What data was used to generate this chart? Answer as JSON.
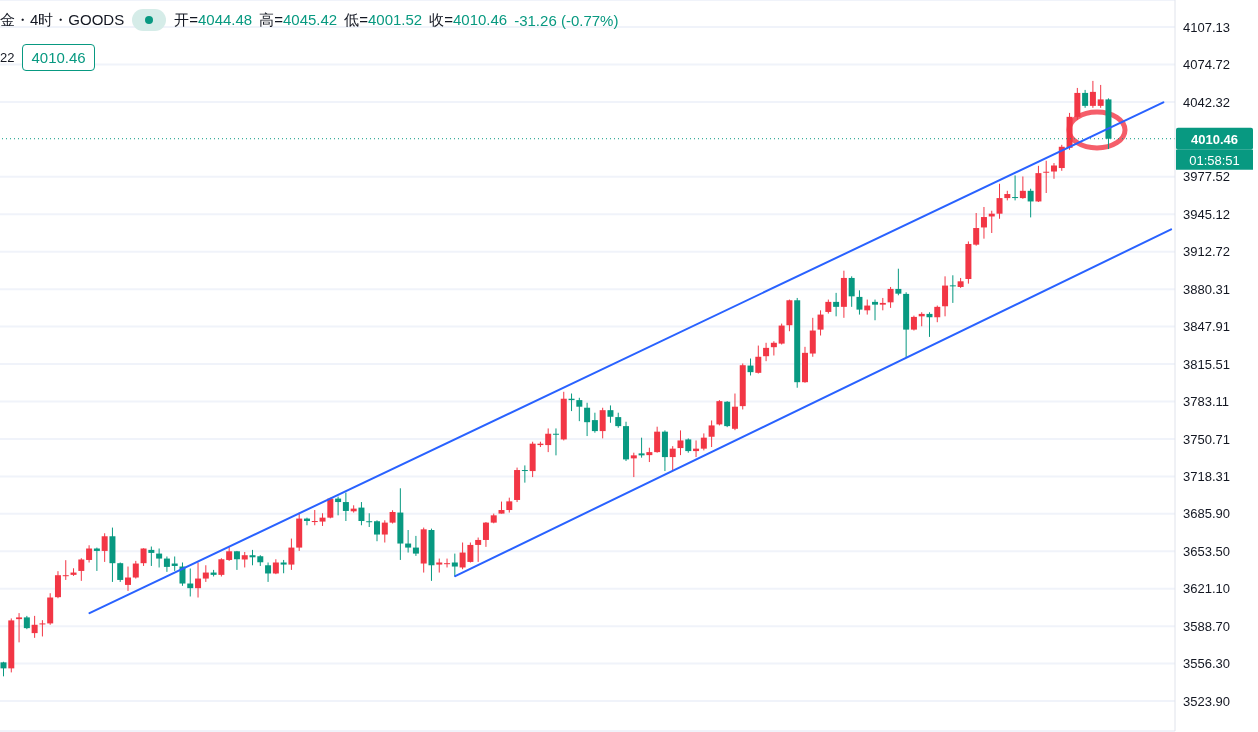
{
  "chart_data": {
    "type": "candlestick",
    "title": "金・4时・GOODS",
    "annotations": [
      "开=4044.48",
      "高=4045.42",
      "低=4001.52",
      "收=4010.46",
      "-31.26 (-0.77%)",
      "22",
      "4010.46",
      "01:58:51"
    ],
    "categories": [
      null,
      null,
      null,
      null,
      null,
      null,
      null,
      null,
      null,
      null,
      null,
      null,
      null,
      null,
      null,
      null,
      null,
      null,
      null,
      null,
      null,
      null,
      null,
      null,
      null,
      null,
      null,
      null,
      null,
      null,
      null,
      null,
      null,
      null,
      null,
      null,
      null,
      null,
      null,
      null,
      null,
      null,
      null,
      null,
      null,
      null,
      null,
      null,
      null,
      null,
      null,
      null,
      null,
      null,
      null,
      null,
      null,
      null,
      null,
      null,
      null,
      null,
      null,
      null,
      null,
      null,
      null,
      null,
      null,
      null,
      null,
      null,
      null,
      null,
      null,
      null,
      null,
      null,
      null,
      null,
      null,
      null,
      null,
      null,
      null,
      null,
      null,
      null,
      null,
      null,
      null,
      null,
      null,
      null,
      null,
      null,
      null,
      null,
      null,
      null,
      null,
      null,
      null,
      null,
      null,
      null,
      null,
      null,
      null,
      null,
      null,
      null,
      null,
      null,
      null,
      null,
      null,
      null,
      null,
      null,
      null,
      null,
      null,
      null,
      null,
      null,
      null,
      null,
      null,
      null,
      null,
      null,
      null,
      null,
      null,
      null,
      null,
      null,
      null,
      null,
      null,
      null,
      null,
      null,
      null,
      null,
      null,
      null,
      null,
      null,
      null
    ],
    "ohlc": [
      [
        3557.4,
        3557.9,
        3545.3,
        3552.2
      ],
      [
        3552.2,
        3595.4,
        3548.7,
        3593.7
      ],
      [
        3594.8,
        3600.0,
        3574.7,
        3596.3
      ],
      [
        3596.3,
        3597.6,
        3586.1,
        3587.0
      ],
      [
        3582.7,
        3597.6,
        3578.6,
        3589.9
      ],
      [
        3590.2,
        3593.9,
        3579.8,
        3591.1
      ],
      [
        3591.1,
        3617.2,
        3589.9,
        3613.5
      ],
      [
        3613.8,
        3636.3,
        3612.9,
        3632.8
      ],
      [
        3632.2,
        3645.8,
        3628.7,
        3632.8
      ],
      [
        3633.1,
        3638.8,
        3632.2,
        3635.1
      ],
      [
        3636.5,
        3647.5,
        3627.9,
        3646.4
      ],
      [
        3646.0,
        3658.7,
        3643.8,
        3655.9
      ],
      [
        3655.9,
        3656.7,
        3636.5,
        3653.8
      ],
      [
        3653.8,
        3669.1,
        3644.3,
        3666.5
      ],
      [
        3666.5,
        3674.0,
        3627.0,
        3643.2
      ],
      [
        3643.2,
        3643.8,
        3627.0,
        3628.7
      ],
      [
        3624.4,
        3640.3,
        3619.2,
        3630.8
      ],
      [
        3630.8,
        3645.2,
        3629.9,
        3642.9
      ],
      [
        3643.2,
        3656.1,
        3640.8,
        3655.9
      ],
      [
        3654.7,
        3657.6,
        3640.8,
        3652.1
      ],
      [
        3651.5,
        3655.9,
        3639.5,
        3647.2
      ],
      [
        3647.2,
        3649.0,
        3635.7,
        3640.0
      ],
      [
        3642.9,
        3649.0,
        3636.5,
        3640.8
      ],
      [
        3640.3,
        3643.8,
        3623.6,
        3625.6
      ],
      [
        3625.6,
        3638.6,
        3614.4,
        3621.6
      ],
      [
        3621.6,
        3643.8,
        3613.5,
        3629.9
      ],
      [
        3629.9,
        3641.4,
        3627.0,
        3635.1
      ],
      [
        3635.1,
        3637.4,
        3631.7,
        3633.1
      ],
      [
        3633.1,
        3647.5,
        3631.7,
        3646.6
      ],
      [
        3646.0,
        3658.1,
        3645.2,
        3653.5
      ],
      [
        3653.5,
        3653.8,
        3637.4,
        3646.6
      ],
      [
        3646.4,
        3652.9,
        3639.5,
        3650.1
      ],
      [
        3650.1,
        3654.7,
        3641.4,
        3648.3
      ],
      [
        3649.2,
        3650.1,
        3640.8,
        3644.0
      ],
      [
        3641.4,
        3643.8,
        3627.0,
        3634.3
      ],
      [
        3634.3,
        3646.6,
        3633.7,
        3643.8
      ],
      [
        3643.8,
        3646.0,
        3634.5,
        3642.0
      ],
      [
        3642.0,
        3664.5,
        3637.4,
        3656.7
      ],
      [
        3656.7,
        3687.0,
        3653.8,
        3681.8
      ],
      [
        3681.8,
        3682.6,
        3676.0,
        3679.7
      ],
      [
        3678.8,
        3689.2,
        3676.0,
        3679.7
      ],
      [
        3679.2,
        3686.4,
        3675.4,
        3682.6
      ],
      [
        3682.6,
        3699.9,
        3682.0,
        3699.1
      ],
      [
        3699.1,
        3700.8,
        3684.6,
        3696.1
      ],
      [
        3696.1,
        3704.3,
        3679.7,
        3688.4
      ],
      [
        3688.1,
        3693.3,
        3687.0,
        3690.4
      ],
      [
        3691.3,
        3696.1,
        3676.0,
        3679.7
      ],
      [
        3679.5,
        3686.4,
        3674.5,
        3678.8
      ],
      [
        3679.5,
        3680.3,
        3662.2,
        3668.0
      ],
      [
        3668.0,
        3680.3,
        3661.1,
        3678.3
      ],
      [
        3678.3,
        3689.0,
        3677.5,
        3687.5
      ],
      [
        3687.0,
        3708.0,
        3646.0,
        3660.2
      ],
      [
        3660.2,
        3671.9,
        3652.4,
        3656.7
      ],
      [
        3656.7,
        3666.8,
        3649.5,
        3651.5
      ],
      [
        3642.9,
        3674.0,
        3635.1,
        3672.5
      ],
      [
        3671.9,
        3673.1,
        3627.9,
        3641.4
      ],
      [
        3642.0,
        3647.2,
        3635.1,
        3643.8
      ],
      [
        3642.6,
        3647.2,
        3639.5,
        3643.2
      ],
      [
        3643.8,
        3651.5,
        3631.7,
        3640.3
      ],
      [
        3639.5,
        3661.1,
        3638.0,
        3652.4
      ],
      [
        3644.3,
        3661.1,
        3643.8,
        3659.0
      ],
      [
        3659.0,
        3665.4,
        3644.3,
        3663.3
      ],
      [
        3663.3,
        3678.8,
        3657.3,
        3678.3
      ],
      [
        3678.3,
        3686.1,
        3677.7,
        3684.6
      ],
      [
        3686.1,
        3696.5,
        3686.1,
        3689.2
      ],
      [
        3689.2,
        3699.9,
        3687.0,
        3696.7
      ],
      [
        3697.9,
        3725.9,
        3696.1,
        3723.8
      ],
      [
        3723.8,
        3727.8,
        3712.9,
        3723.3
      ],
      [
        3722.9,
        3748.3,
        3717.7,
        3746.6
      ],
      [
        3745.4,
        3748.3,
        3743.7,
        3746.6
      ],
      [
        3745.4,
        3759.8,
        3739.3,
        3755.2
      ],
      [
        3755.2,
        3759.8,
        3736.5,
        3754.6
      ],
      [
        3750.3,
        3791.5,
        3749.4,
        3785.5
      ],
      [
        3785.5,
        3790.0,
        3774.8,
        3784.3
      ],
      [
        3784.3,
        3786.3,
        3766.1,
        3778.6
      ],
      [
        3777.7,
        3782.0,
        3753.2,
        3765.2
      ],
      [
        3767.0,
        3773.4,
        3756.1,
        3757.5
      ],
      [
        3757.5,
        3777.7,
        3751.2,
        3775.6
      ],
      [
        3775.6,
        3779.7,
        3764.7,
        3769.9
      ],
      [
        3769.6,
        3773.4,
        3760.4,
        3761.8
      ],
      [
        3761.8,
        3765.6,
        3731.6,
        3733.0
      ],
      [
        3733.9,
        3738.8,
        3717.7,
        3736.5
      ],
      [
        3738.2,
        3751.8,
        3734.5,
        3736.5
      ],
      [
        3736.7,
        3743.1,
        3730.7,
        3739.3
      ],
      [
        3739.3,
        3761.3,
        3738.8,
        3757.0
      ],
      [
        3757.0,
        3758.1,
        3722.9,
        3735.0
      ],
      [
        3735.0,
        3744.5,
        3723.8,
        3742.3
      ],
      [
        3742.8,
        3758.1,
        3736.7,
        3749.4
      ],
      [
        3750.3,
        3751.2,
        3738.8,
        3740.2
      ],
      [
        3740.2,
        3749.4,
        3735.0,
        3742.3
      ],
      [
        3742.3,
        3755.5,
        3740.8,
        3751.8
      ],
      [
        3752.6,
        3766.7,
        3743.7,
        3762.4
      ],
      [
        3763.3,
        3784.3,
        3762.4,
        3783.4
      ],
      [
        3782.9,
        3783.4,
        3760.9,
        3761.8
      ],
      [
        3759.5,
        3790.0,
        3758.3,
        3778.6
      ],
      [
        3779.1,
        3816.0,
        3776.2,
        3814.5
      ],
      [
        3814.2,
        3820.3,
        3805.6,
        3808.5
      ],
      [
        3807.9,
        3831.5,
        3807.3,
        3821.8
      ],
      [
        3822.3,
        3833.9,
        3818.0,
        3829.5
      ],
      [
        3830.1,
        3835.2,
        3822.9,
        3833.9
      ],
      [
        3833.2,
        3850.5,
        3832.4,
        3848.8
      ],
      [
        3849.1,
        3871.3,
        3843.9,
        3870.7
      ],
      [
        3870.7,
        3872.7,
        3795.0,
        3799.8
      ],
      [
        3799.8,
        3830.4,
        3799.3,
        3825.2
      ],
      [
        3824.6,
        3855.5,
        3821.8,
        3844.5
      ],
      [
        3845.3,
        3862.0,
        3840.2,
        3858.3
      ],
      [
        3860.6,
        3871.3,
        3859.2,
        3869.3
      ],
      [
        3869.3,
        3877.1,
        3856.8,
        3865.0
      ],
      [
        3865.0,
        3896.3,
        3855.5,
        3890.0
      ],
      [
        3890.0,
        3891.4,
        3865.0,
        3874.1
      ],
      [
        3873.6,
        3879.3,
        3858.3,
        3862.6
      ],
      [
        3862.0,
        3871.3,
        3858.3,
        3866.1
      ],
      [
        3869.3,
        3871.3,
        3853.4,
        3866.9
      ],
      [
        3866.9,
        3872.7,
        3862.0,
        3868.4
      ],
      [
        3868.9,
        3882.2,
        3864.1,
        3880.5
      ],
      [
        3880.5,
        3898.0,
        3875.0,
        3876.4
      ],
      [
        3876.2,
        3877.6,
        3820.9,
        3845.3
      ],
      [
        3845.3,
        3857.4,
        3844.5,
        3856.3
      ],
      [
        3856.8,
        3860.3,
        3848.2,
        3858.9
      ],
      [
        3858.9,
        3860.3,
        3839.0,
        3856.0
      ],
      [
        3856.0,
        3866.1,
        3851.7,
        3865.0
      ],
      [
        3865.5,
        3891.4,
        3856.8,
        3883.4
      ],
      [
        3883.6,
        3892.3,
        3868.4,
        3882.8
      ],
      [
        3882.2,
        3890.0,
        3881.4,
        3887.1
      ],
      [
        3889.1,
        3921.6,
        3885.1,
        3919.4
      ],
      [
        3918.8,
        3946.2,
        3917.9,
        3933.2
      ],
      [
        3933.7,
        3951.4,
        3924.0,
        3942.7
      ],
      [
        3943.2,
        3948.2,
        3928.9,
        3945.6
      ],
      [
        3945.6,
        3971.5,
        3941.2,
        3959.1
      ],
      [
        3959.1,
        3965.4,
        3957.1,
        3962.6
      ],
      [
        3960.0,
        3978.7,
        3957.1,
        3959.4
      ],
      [
        3959.1,
        3977.8,
        3958.5,
        3965.4
      ],
      [
        3965.4,
        3967.2,
        3942.4,
        3956.2
      ],
      [
        3956.2,
        3987.0,
        3955.7,
        3980.7
      ],
      [
        3981.3,
        3991.4,
        3963.5,
        3981.9
      ],
      [
        3982.1,
        3989.4,
        3975.8,
        3987.3
      ],
      [
        3985.1,
        4005.2,
        3982.7,
        4003.5
      ],
      [
        4002.6,
        4032.8,
        4000.9,
        4029.4
      ],
      [
        4029.4,
        4054.4,
        4026.8,
        4050.1
      ],
      [
        4050.1,
        4052.7,
        4037.2,
        4038.9
      ],
      [
        4038.9,
        4060.5,
        4037.2,
        4051.0
      ],
      [
        4038.9,
        4057.0,
        4037.2,
        4044.5
      ],
      [
        4044.48,
        4045.42,
        4001.52,
        4010.46
      ],
      null,
      null,
      null,
      null,
      null,
      null,
      null,
      null
    ],
    "colors": [
      "#089981",
      "#f23645",
      "#f23645",
      "#089981",
      "#f23645",
      "#f23645",
      "#f23645",
      "#f23645",
      "#f23645",
      "#f23645",
      "#f23645",
      "#f23645",
      "#089981",
      "#f23645",
      "#089981",
      "#089981",
      "#f23645",
      "#f23645",
      "#f23645",
      "#089981",
      "#089981",
      "#089981",
      "#089981",
      "#089981",
      "#089981",
      "#f23645",
      "#f23645",
      "#089981",
      "#f23645",
      "#f23645",
      "#089981",
      "#f23645",
      "#089981",
      "#089981",
      "#089981",
      "#f23645",
      "#089981",
      "#f23645",
      "#f23645",
      "#089981",
      "#f23645",
      "#f23645",
      "#f23645",
      "#089981",
      "#089981",
      "#f23645",
      "#089981",
      "#089981",
      "#089981",
      "#f23645",
      "#f23645",
      "#089981",
      "#089981",
      "#089981",
      "#f23645",
      "#089981",
      "#f23645",
      "#f23645",
      "#089981",
      "#f23645",
      "#f23645",
      "#f23645",
      "#f23645",
      "#f23645",
      "#f23645",
      "#f23645",
      "#f23645",
      "#089981",
      "#f23645",
      "#f23645",
      "#f23645",
      "#089981",
      "#f23645",
      "#089981",
      "#089981",
      "#089981",
      "#089981",
      "#f23645",
      "#089981",
      "#089981",
      "#089981",
      "#f23645",
      "#089981",
      "#f23645",
      "#f23645",
      "#089981",
      "#f23645",
      "#f23645",
      "#089981",
      "#f23645",
      "#f23645",
      "#f23645",
      "#f23645",
      "#089981",
      "#f23645",
      "#f23645",
      "#089981",
      "#f23645",
      "#f23645",
      "#f23645",
      "#f23645",
      "#f23645",
      "#089981",
      "#f23645",
      "#f23645",
      "#f23645",
      "#f23645",
      "#089981",
      "#f23645",
      "#089981",
      "#089981",
      "#f23645",
      "#089981",
      "#f23645",
      "#f23645",
      "#089981",
      "#089981",
      "#f23645",
      "#f23645",
      "#089981",
      "#f23645",
      "#f23645",
      "#089981",
      "#f23645",
      "#f23645",
      "#f23645",
      "#f23645",
      "#f23645",
      "#f23645",
      "#f23645",
      "#089981",
      "#f23645",
      "#089981",
      "#f23645",
      "#f23645",
      "#f23645",
      "#f23645",
      "#f23645",
      "#f23645",
      "#089981",
      "#f23645",
      "#f23645",
      "#089981",
      null,
      null,
      null,
      null,
      null,
      null,
      null,
      null
    ],
    "series": [
      {
        "type": "line",
        "color": "#2962ff",
        "values": [
          null,
          null,
          null,
          null,
          null,
          null,
          null,
          null,
          null,
          null,
          null,
          3600,
          null,
          null,
          null,
          null,
          null,
          null,
          null,
          null,
          null,
          null,
          null,
          null,
          null,
          null,
          null,
          null,
          null,
          null,
          null,
          null,
          null,
          null,
          null,
          null,
          null,
          null,
          null,
          null,
          null,
          null,
          null,
          null,
          null,
          null,
          null,
          null,
          null,
          null,
          null,
          null,
          null,
          null,
          null,
          null,
          null,
          null,
          null,
          null,
          null,
          null,
          null,
          null,
          null,
          null,
          null,
          null,
          null,
          null,
          null,
          null,
          null,
          null,
          null,
          null,
          null,
          null,
          null,
          null,
          null,
          null,
          null,
          null,
          null,
          null,
          null,
          null,
          null,
          null,
          null,
          null,
          null,
          null,
          null,
          null,
          null,
          null,
          null,
          null,
          null,
          null,
          null,
          null,
          null,
          null,
          null,
          null,
          null,
          null,
          null,
          null,
          null,
          null,
          null,
          null,
          null,
          null,
          null,
          null,
          null,
          null,
          null,
          null,
          null,
          null,
          null,
          null,
          null,
          null,
          null,
          null,
          null,
          null,
          null,
          null,
          null,
          null,
          null,
          null,
          null,
          null,
          null,
          null,
          null,
          null,
          null,
          null,
          null,
          4042,
          null
        ]
      },
      {
        "type": "line",
        "color": "#2962ff",
        "values": [
          null,
          null,
          null,
          null,
          null,
          null,
          null,
          null,
          null,
          null,
          null,
          null,
          null,
          null,
          null,
          null,
          null,
          null,
          null,
          null,
          null,
          null,
          null,
          null,
          null,
          null,
          null,
          null,
          null,
          null,
          null,
          null,
          null,
          null,
          null,
          null,
          null,
          null,
          null,
          null,
          null,
          null,
          null,
          null,
          null,
          null,
          null,
          null,
          null,
          null,
          null,
          null,
          null,
          null,
          null,
          null,
          null,
          null,
          3632,
          null,
          null,
          null,
          null,
          null,
          null,
          null,
          null,
          null,
          null,
          null,
          null,
          null,
          null,
          null,
          null,
          null,
          null,
          null,
          null,
          null,
          null,
          null,
          null,
          null,
          null,
          null,
          null,
          null,
          null,
          null,
          null,
          null,
          null,
          null,
          null,
          null,
          null,
          null,
          null,
          null,
          null,
          null,
          null,
          null,
          null,
          null,
          null,
          null,
          null,
          null,
          null,
          null,
          null,
          null,
          null,
          null,
          null,
          null,
          null,
          null,
          null,
          null,
          null,
          null,
          null,
          null,
          null,
          null,
          null,
          null,
          null,
          null,
          null,
          null,
          null,
          null,
          null,
          null,
          null,
          null,
          null,
          null,
          null,
          null,
          null,
          null,
          null,
          null,
          null,
          null,
          3932
        ]
      }
    ],
    "ylim": [
      3498.0,
      4130.5
    ],
    "yticks": [
      {
        "value": 3523.9,
        "label": "3523.90"
      },
      {
        "value": 3556.3,
        "label": "3556.30"
      },
      {
        "value": 3588.7,
        "label": "3588.70"
      },
      {
        "value": 3621.1,
        "label": "3621.10"
      },
      {
        "value": 3653.5,
        "label": "3653.50"
      },
      {
        "value": 3685.9,
        "label": "3685.90"
      },
      {
        "value": 3718.31,
        "label": "3718.31"
      },
      {
        "value": 3750.71,
        "label": "3750.71"
      },
      {
        "value": 3783.11,
        "label": "3783.11"
      },
      {
        "value": 3815.51,
        "label": "3815.51"
      },
      {
        "value": 3847.91,
        "label": "3847.91"
      },
      {
        "value": 3880.31,
        "label": "3880.31"
      },
      {
        "value": 3912.72,
        "label": "3912.72"
      },
      {
        "value": 3945.12,
        "label": "3945.12"
      },
      {
        "value": 3977.52,
        "label": "3977.52"
      },
      {
        "value": 4042.32,
        "label": "4042.32"
      },
      {
        "value": 4074.72,
        "label": "4074.72"
      },
      {
        "value": 4107.13,
        "label": "4107.13"
      }
    ],
    "ref_lines": [
      {
        "axis": "y",
        "value": 4010.46,
        "label": "4010.46",
        "color": "#089981",
        "line_style": "dotted"
      }
    ],
    "grid": "y",
    "tick_labels": "y"
  }
}
